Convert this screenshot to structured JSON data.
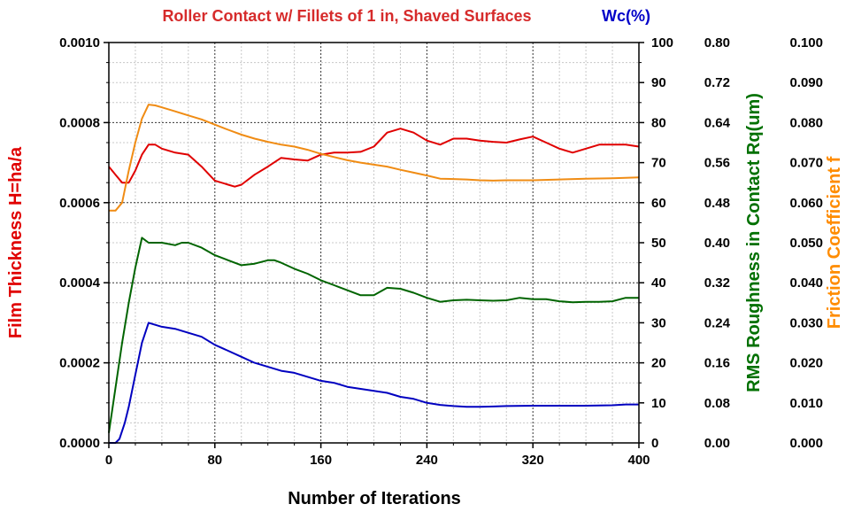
{
  "chart_data": {
    "type": "line",
    "title": "Roller Contact w/ Fillets of 1 in, Shaved Surfaces",
    "title_color": "#d62b2b",
    "title_right": "Wc(%)",
    "title_right_color": "#0000c8",
    "xlabel": "Number of Iterations",
    "xlim": [
      0,
      400
    ],
    "x_ticks": [
      "0",
      "80",
      "160",
      "240",
      "320",
      "400"
    ],
    "grid": true,
    "y_axes": [
      {
        "id": "film",
        "label": "Film Thickness H=ha/a",
        "color": "#e00000",
        "range": [
          0,
          0.001
        ],
        "ticks": [
          "0.0000",
          "0.0002",
          "0.0004",
          "0.0006",
          "0.0008",
          "0.0010"
        ]
      },
      {
        "id": "wc",
        "label": "",
        "color": "#000000",
        "range": [
          0,
          100
        ],
        "ticks": [
          "0",
          "10",
          "20",
          "30",
          "40",
          "50",
          "60",
          "70",
          "80",
          "90",
          "100"
        ]
      },
      {
        "id": "rq",
        "label": "RMS Roughness in Contact Rq(um)",
        "color": "#007000",
        "range": [
          0,
          0.8
        ],
        "ticks": [
          "0.00",
          "0.08",
          "0.16",
          "0.24",
          "0.32",
          "0.40",
          "0.48",
          "0.56",
          "0.64",
          "0.72",
          "0.80"
        ]
      },
      {
        "id": "fric",
        "label": "Friction Coefficient f",
        "color": "#ff8c00",
        "range": [
          0,
          0.1
        ],
        "ticks": [
          "0.000",
          "0.010",
          "0.020",
          "0.030",
          "0.040",
          "0.050",
          "0.060",
          "0.070",
          "0.080",
          "0.090",
          "0.100"
        ]
      }
    ],
    "series": [
      {
        "name": "Film Thickness H=ha/a",
        "axis": "film",
        "color": "#e00000",
        "x": [
          0,
          5,
          10,
          15,
          20,
          25,
          30,
          35,
          40,
          50,
          60,
          70,
          80,
          90,
          95,
          100,
          110,
          120,
          130,
          140,
          150,
          160,
          170,
          180,
          190,
          200,
          210,
          220,
          230,
          240,
          250,
          260,
          270,
          280,
          290,
          300,
          310,
          320,
          330,
          340,
          350,
          360,
          370,
          380,
          390,
          400
        ],
        "y": [
          0.00069,
          0.00067,
          0.00065,
          0.00065,
          0.00068,
          0.00072,
          0.000745,
          0.000745,
          0.000735,
          0.000725,
          0.00072,
          0.00069,
          0.000655,
          0.000645,
          0.00064,
          0.000645,
          0.00067,
          0.00069,
          0.000712,
          0.000708,
          0.000705,
          0.00072,
          0.000725,
          0.000725,
          0.000727,
          0.00074,
          0.000775,
          0.000785,
          0.000775,
          0.000755,
          0.000745,
          0.00076,
          0.00076,
          0.000755,
          0.000752,
          0.00075,
          0.000758,
          0.000765,
          0.00075,
          0.000735,
          0.000725,
          0.000735,
          0.000745,
          0.000745,
          0.000745,
          0.00074
        ]
      },
      {
        "name": "Wc(%)",
        "axis": "wc",
        "color": "#0000c0",
        "x": [
          0,
          5,
          8,
          12,
          15,
          20,
          25,
          30,
          35,
          40,
          50,
          60,
          70,
          80,
          90,
          100,
          110,
          120,
          130,
          140,
          150,
          160,
          170,
          180,
          190,
          200,
          210,
          220,
          230,
          240,
          250,
          260,
          270,
          280,
          290,
          300,
          320,
          340,
          360,
          380,
          390,
          400
        ],
        "y": [
          0,
          0,
          1,
          5,
          9,
          17,
          25,
          30,
          29.5,
          29,
          28.5,
          27.5,
          26.5,
          24.5,
          23,
          21.5,
          20,
          19,
          18,
          17.5,
          16.5,
          15.5,
          15,
          14,
          13.5,
          13,
          12.5,
          11.5,
          11,
          10,
          9.5,
          9.2,
          9.0,
          9.0,
          9.1,
          9.2,
          9.3,
          9.3,
          9.3,
          9.4,
          9.6,
          9.6
        ]
      },
      {
        "name": "RMS Roughness in Contact Rq(um)",
        "axis": "rq",
        "color": "#006400",
        "x": [
          0,
          5,
          10,
          15,
          20,
          25,
          30,
          35,
          40,
          50,
          55,
          60,
          70,
          80,
          90,
          100,
          110,
          120,
          125,
          130,
          140,
          150,
          160,
          170,
          180,
          190,
          200,
          210,
          220,
          230,
          240,
          250,
          260,
          270,
          280,
          290,
          300,
          310,
          320,
          330,
          340,
          350,
          360,
          370,
          380,
          390,
          400
        ],
        "y": [
          0.02,
          0.11,
          0.2,
          0.28,
          0.35,
          0.41,
          0.4,
          0.4,
          0.4,
          0.395,
          0.4,
          0.4,
          0.39,
          0.375,
          0.365,
          0.355,
          0.358,
          0.365,
          0.365,
          0.36,
          0.348,
          0.338,
          0.325,
          0.315,
          0.305,
          0.295,
          0.295,
          0.31,
          0.308,
          0.3,
          0.29,
          0.282,
          0.285,
          0.286,
          0.285,
          0.284,
          0.285,
          0.29,
          0.287,
          0.287,
          0.283,
          0.281,
          0.282,
          0.282,
          0.283,
          0.29,
          0.29
        ]
      },
      {
        "name": "Friction Coefficient f",
        "axis": "fric",
        "color": "#f08c14",
        "x": [
          0,
          5,
          10,
          15,
          20,
          25,
          30,
          35,
          40,
          50,
          60,
          70,
          80,
          90,
          100,
          110,
          120,
          130,
          140,
          150,
          160,
          170,
          180,
          190,
          200,
          210,
          220,
          230,
          240,
          250,
          260,
          270,
          280,
          290,
          300,
          320,
          340,
          360,
          380,
          400
        ],
        "y": [
          0.058,
          0.058,
          0.06,
          0.068,
          0.075,
          0.081,
          0.0845,
          0.0843,
          0.0838,
          0.0828,
          0.0818,
          0.0808,
          0.0795,
          0.0782,
          0.077,
          0.076,
          0.0752,
          0.0745,
          0.074,
          0.0732,
          0.0722,
          0.0714,
          0.0706,
          0.07,
          0.0695,
          0.069,
          0.0682,
          0.0675,
          0.0668,
          0.066,
          0.0659,
          0.0658,
          0.0656,
          0.0655,
          0.0656,
          0.0656,
          0.0658,
          0.066,
          0.0661,
          0.0663
        ]
      }
    ]
  }
}
